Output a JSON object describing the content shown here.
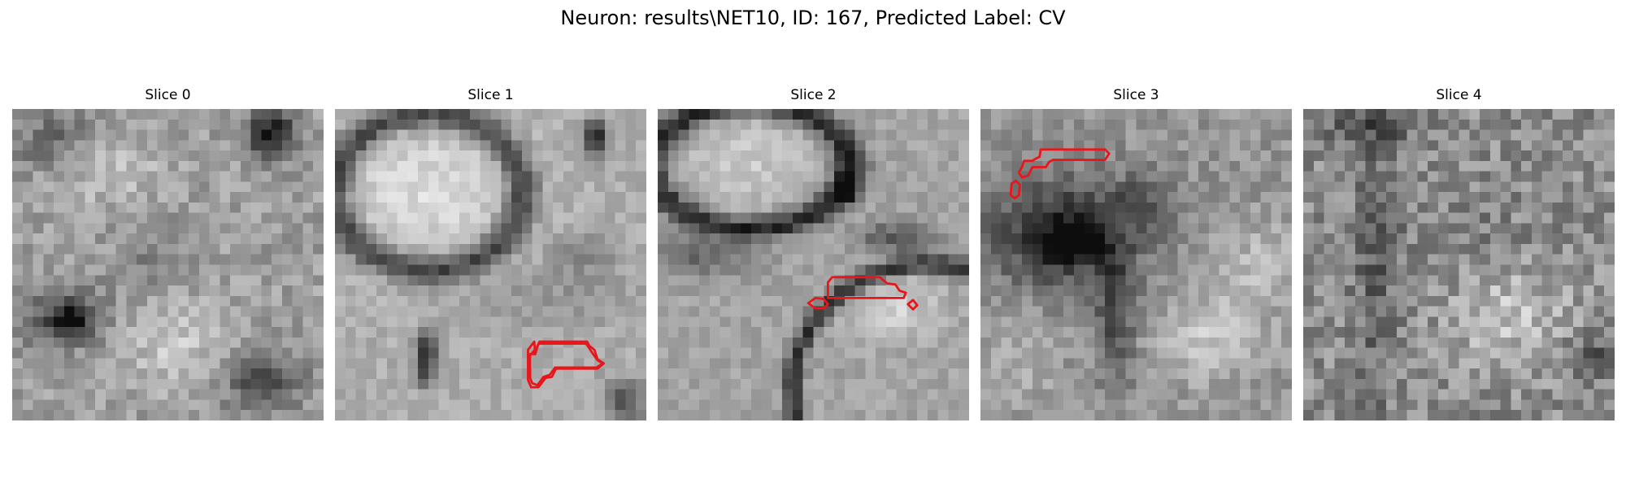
{
  "figure": {
    "title": "Neuron: results\\NET10, ID: 167, Predicted Label: CV"
  },
  "colors": {
    "contour": "#e8161a",
    "background": "#ffffff"
  },
  "panels": [
    {
      "title": "Slice 0"
    },
    {
      "title": "Slice 1"
    },
    {
      "title": "Slice 2"
    },
    {
      "title": "Slice 3"
    },
    {
      "title": "Slice 4"
    }
  ]
}
